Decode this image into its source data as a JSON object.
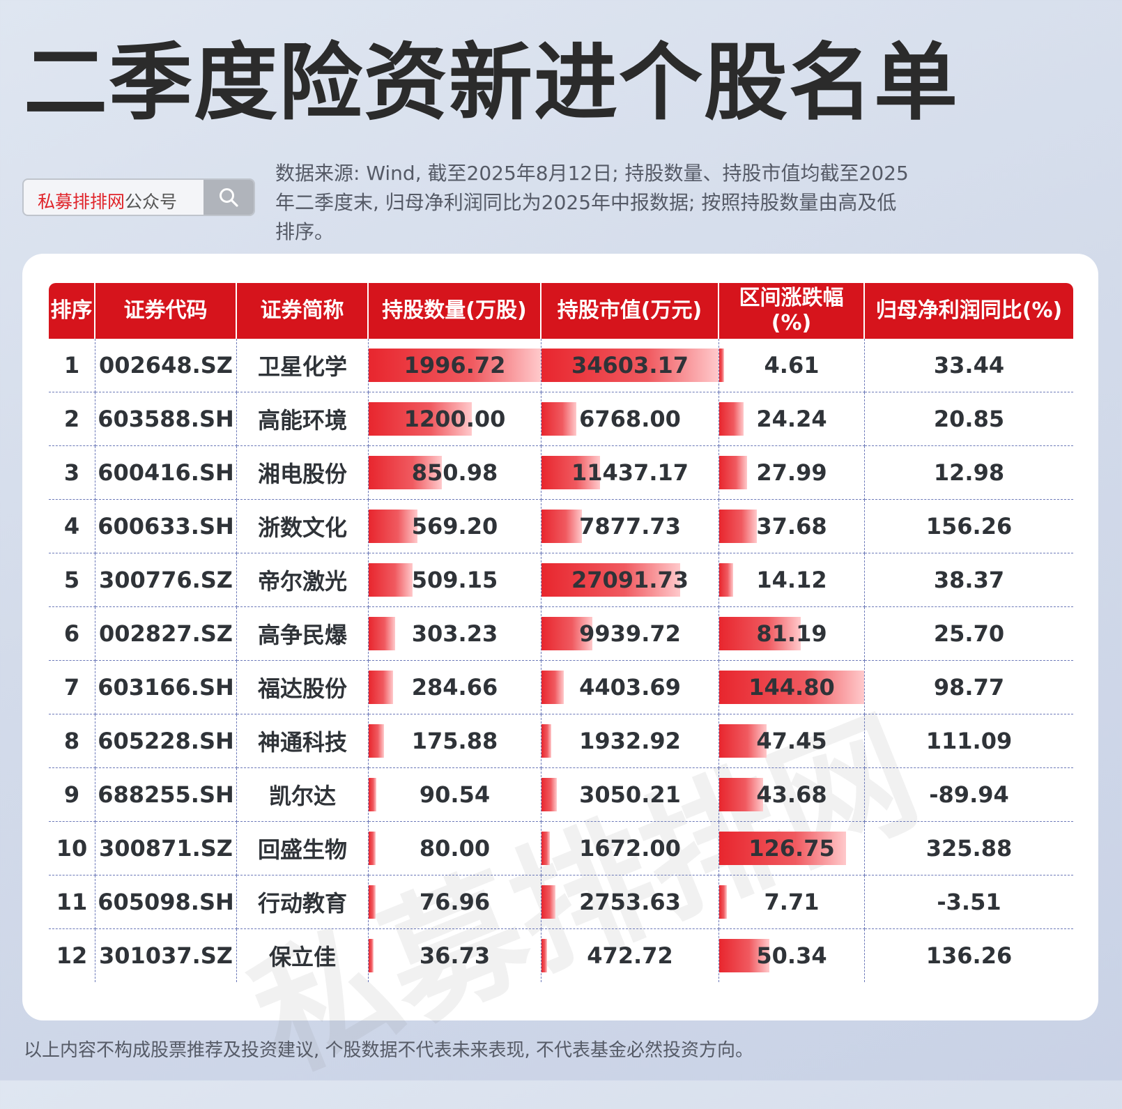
{
  "title": "二季度险资新进个股名单",
  "search": {
    "brand": "私募排排网",
    "suffix": "公众号"
  },
  "note": "数据来源: Wind, 截至2025年8月12日; 持股数量、持股市值均截至2025年二季度末, 归母净利润同比为2025年中报数据; 按照持股数量由高及低排序。",
  "watermark": "私募排排网",
  "table": {
    "headers": [
      "排序",
      "证券代码",
      "证券简称",
      "持股数量(万股)",
      "持股市值(万元)",
      "区间涨跌幅(%)",
      "归母净利润同比(%)"
    ],
    "rows": [
      {
        "rank": "1",
        "code": "002648.SZ",
        "name": "卫星化学",
        "shares": "1996.72",
        "value": "34603.17",
        "change": "4.61",
        "profit": "33.44"
      },
      {
        "rank": "2",
        "code": "603588.SH",
        "name": "高能环境",
        "shares": "1200.00",
        "value": "6768.00",
        "change": "24.24",
        "profit": "20.85"
      },
      {
        "rank": "3",
        "code": "600416.SH",
        "name": "湘电股份",
        "shares": "850.98",
        "value": "11437.17",
        "change": "27.99",
        "profit": "12.98"
      },
      {
        "rank": "4",
        "code": "600633.SH",
        "name": "浙数文化",
        "shares": "569.20",
        "value": "7877.73",
        "change": "37.68",
        "profit": "156.26"
      },
      {
        "rank": "5",
        "code": "300776.SZ",
        "name": "帝尔激光",
        "shares": "509.15",
        "value": "27091.73",
        "change": "14.12",
        "profit": "38.37"
      },
      {
        "rank": "6",
        "code": "002827.SZ",
        "name": "高争民爆",
        "shares": "303.23",
        "value": "9939.72",
        "change": "81.19",
        "profit": "25.70"
      },
      {
        "rank": "7",
        "code": "603166.SH",
        "name": "福达股份",
        "shares": "284.66",
        "value": "4403.69",
        "change": "144.80",
        "profit": "98.77"
      },
      {
        "rank": "8",
        "code": "605228.SH",
        "name": "神通科技",
        "shares": "175.88",
        "value": "1932.92",
        "change": "47.45",
        "profit": "111.09"
      },
      {
        "rank": "9",
        "code": "688255.SH",
        "name": "凯尔达",
        "shares": "90.54",
        "value": "3050.21",
        "change": "43.68",
        "profit": "-89.94"
      },
      {
        "rank": "10",
        "code": "300871.SZ",
        "name": "回盛生物",
        "shares": "80.00",
        "value": "1672.00",
        "change": "126.75",
        "profit": "325.88"
      },
      {
        "rank": "11",
        "code": "605098.SH",
        "name": "行动教育",
        "shares": "76.96",
        "value": "2753.63",
        "change": "7.71",
        "profit": "-3.51"
      },
      {
        "rank": "12",
        "code": "301037.SZ",
        "name": "保立佳",
        "shares": "36.73",
        "value": "472.72",
        "change": "50.34",
        "profit": "136.26"
      }
    ]
  },
  "footer": "以上内容不构成股票推荐及投资建议, 个股数据不代表未来表现, 不代表基金必然投资方向。"
}
